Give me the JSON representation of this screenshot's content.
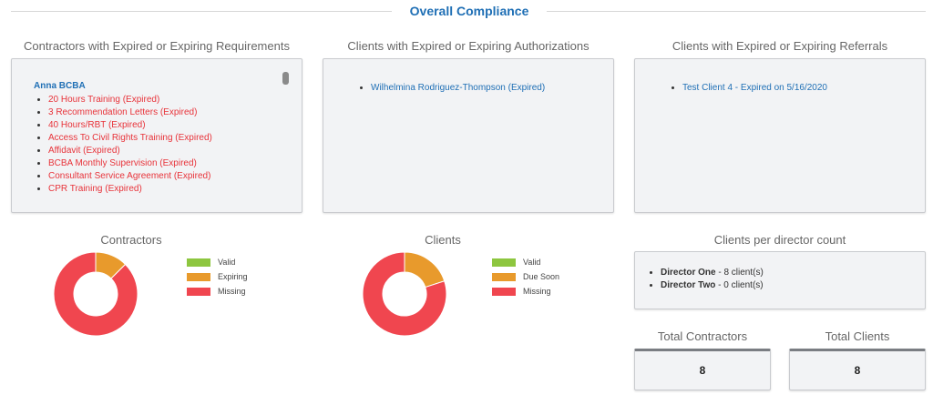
{
  "page_title": "Overall Compliance",
  "contractors_section": {
    "title": "Contractors with Expired or Expiring Requirements",
    "contractor_name": "Anna BCBA",
    "requirements": [
      "20 Hours Training (Expired)",
      "3 Recommendation Letters (Expired)",
      "40 Hours/RBT (Expired)",
      "Access To Civil Rights Training (Expired)",
      "Affidavit (Expired)",
      "BCBA Monthly Supervision (Expired)",
      "Consultant Service Agreement (Expired)",
      "CPR Training (Expired)"
    ]
  },
  "authorizations_section": {
    "title": "Clients with Expired or Expiring Authorizations",
    "items": [
      "Wilhelmina Rodriguez-Thompson (Expired)"
    ]
  },
  "referrals_section": {
    "title": "Clients with Expired or Expiring Referrals",
    "items": [
      "Test Client 4 - Expired on 5/16/2020"
    ]
  },
  "contractors_chart": {
    "title": "Contractors",
    "legend": [
      "Valid",
      "Expiring",
      "Missing"
    ]
  },
  "clients_chart": {
    "title": "Clients",
    "legend": [
      "Valid",
      "Due Soon",
      "Missing"
    ]
  },
  "director_section": {
    "title": "Clients per director count",
    "items": [
      {
        "name": "Director One",
        "count": " - 8 client(s)"
      },
      {
        "name": "Director Two",
        "count": " - 0 client(s)"
      }
    ]
  },
  "totals": {
    "contractors_label": "Total Contractors",
    "contractors_value": "8",
    "clients_label": "Total Clients",
    "clients_value": "8"
  },
  "colors": {
    "valid": "#8dc63f",
    "expiring": "#e89a2c",
    "missing": "#f0464f",
    "accent": "#1f6fb5"
  },
  "chart_data": [
    {
      "type": "pie",
      "title": "Contractors",
      "categories": [
        "Valid",
        "Expiring",
        "Missing"
      ],
      "values": [
        0,
        1,
        7
      ]
    },
    {
      "type": "pie",
      "title": "Clients",
      "categories": [
        "Valid",
        "Due Soon",
        "Missing"
      ],
      "values": [
        0,
        1.6,
        6.4
      ]
    }
  ]
}
